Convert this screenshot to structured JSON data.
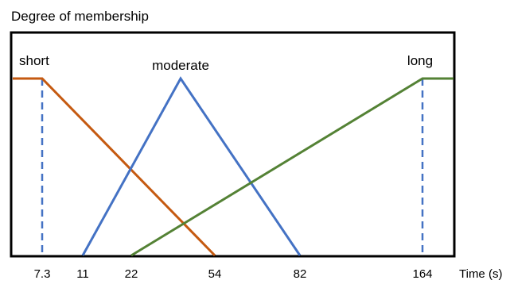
{
  "chart_data": {
    "type": "line",
    "title": "Degree of membership",
    "xlabel": "Time (s)",
    "ylabel": "",
    "x_ticks": [
      "7.3",
      "11",
      "22",
      "54",
      "82",
      "164"
    ],
    "series": [
      {
        "name": "short",
        "color": "#c55a11",
        "points": [
          {
            "x": "0",
            "y": 1
          },
          {
            "x": "7.3",
            "y": 1
          },
          {
            "x": "54",
            "y": 0
          }
        ]
      },
      {
        "name": "moderate",
        "color": "#4472c4",
        "points": [
          {
            "x": "11",
            "y": 0
          },
          {
            "x": "peak",
            "y": 1
          },
          {
            "x": "82",
            "y": 0
          }
        ]
      },
      {
        "name": "long",
        "color": "#548235",
        "points": [
          {
            "x": "22",
            "y": 0
          },
          {
            "x": "164",
            "y": 1
          },
          {
            "x": "end",
            "y": 1
          }
        ]
      }
    ],
    "guides": [
      {
        "x": "7.3",
        "color": "#4472c4",
        "style": "dashed"
      },
      {
        "x": "164",
        "color": "#4472c4",
        "style": "dashed"
      }
    ],
    "ylim": [
      0,
      1
    ],
    "grid": false,
    "legend": "none"
  }
}
